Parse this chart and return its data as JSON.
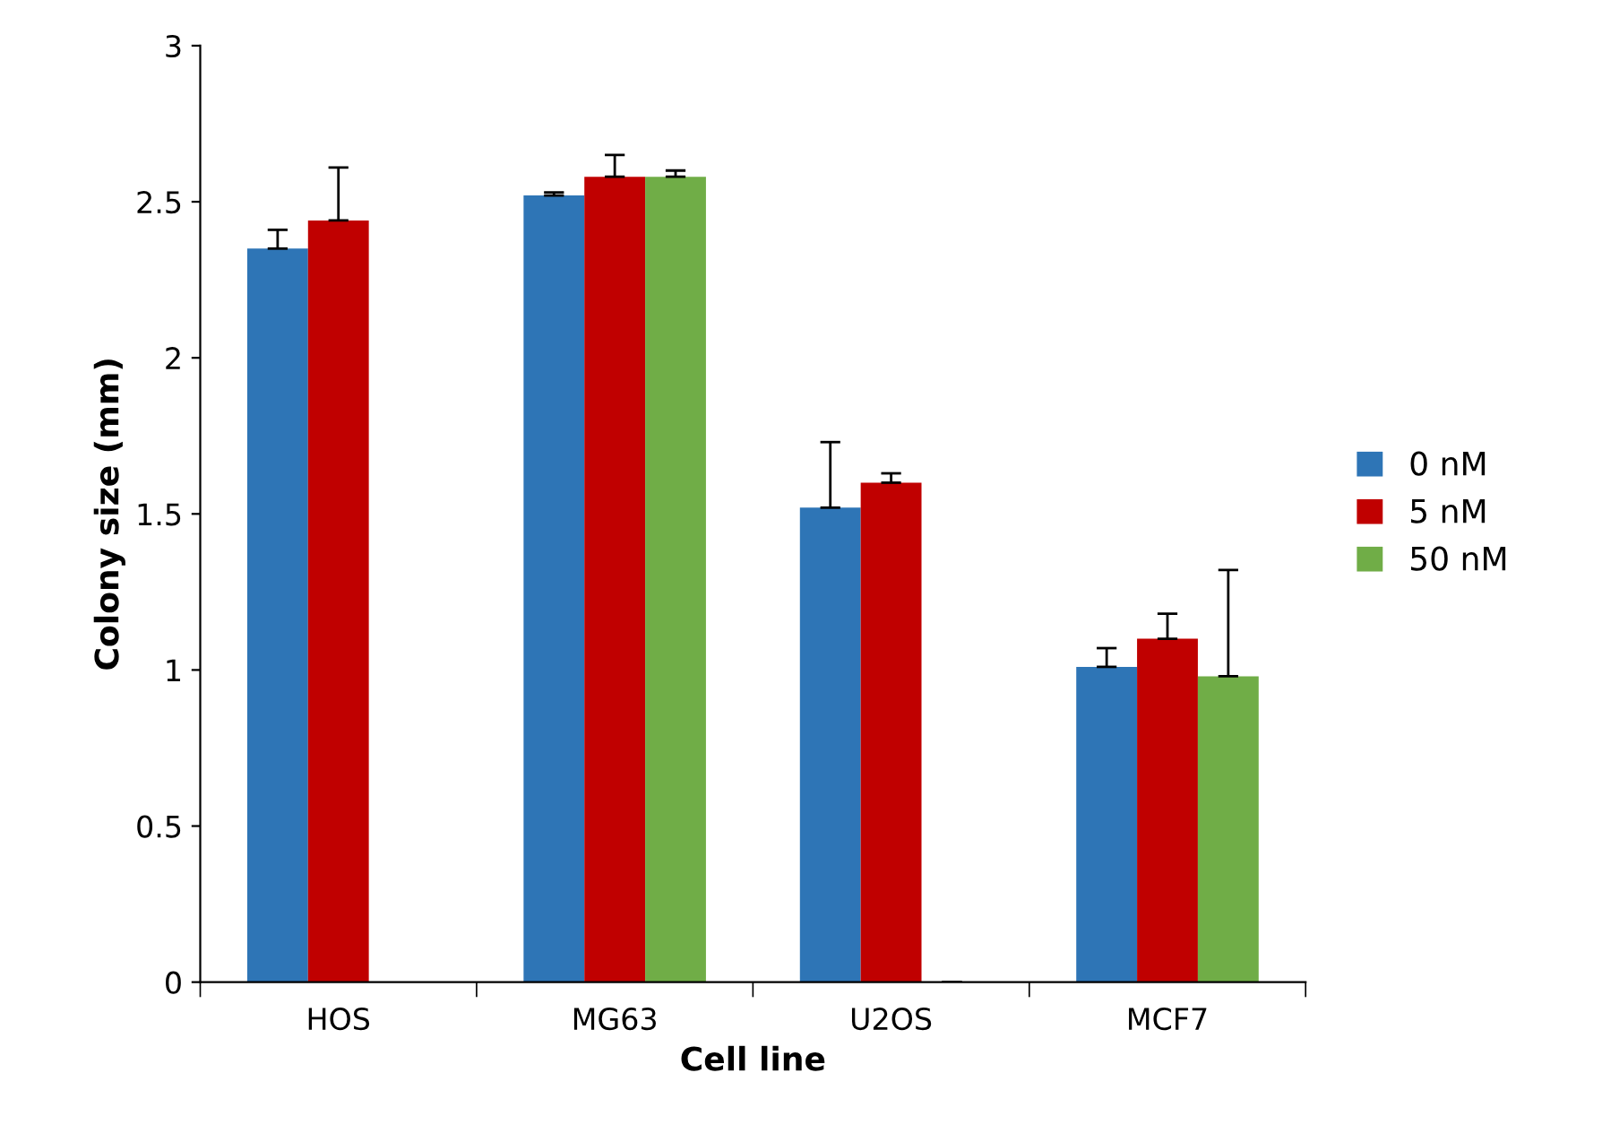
{
  "chart_data": {
    "type": "bar",
    "xlabel": "Cell line",
    "ylabel": "Colony size (mm)",
    "categories": [
      "HOS",
      "MG63",
      "U2OS",
      "MCF7"
    ],
    "series": [
      {
        "name": "0 nM",
        "color": "#2e75b6",
        "values": [
          2.35,
          2.52,
          1.52,
          1.01
        ],
        "errors": [
          [
            2.35,
            2.41
          ],
          [
            2.52,
            2.53
          ],
          [
            1.52,
            1.73
          ],
          [
            1.01,
            1.07
          ]
        ]
      },
      {
        "name": "5 nM",
        "color": "#c00000",
        "values": [
          2.44,
          2.58,
          1.6,
          1.1
        ],
        "errors": [
          [
            2.44,
            2.61
          ],
          [
            2.58,
            2.65
          ],
          [
            1.6,
            1.63
          ],
          [
            1.1,
            1.18
          ]
        ]
      },
      {
        "name": "50 nM",
        "color": "#70ad47",
        "values": [
          null,
          2.58,
          0,
          0.98
        ],
        "errors": [
          null,
          [
            2.58,
            2.6
          ],
          [
            0,
            0
          ],
          [
            0.98,
            1.32
          ]
        ]
      }
    ],
    "ylim": [
      0,
      3
    ],
    "yticks": [
      0,
      0.5,
      1,
      1.5,
      2,
      2.5,
      3
    ],
    "grid": false,
    "legend": "right"
  }
}
